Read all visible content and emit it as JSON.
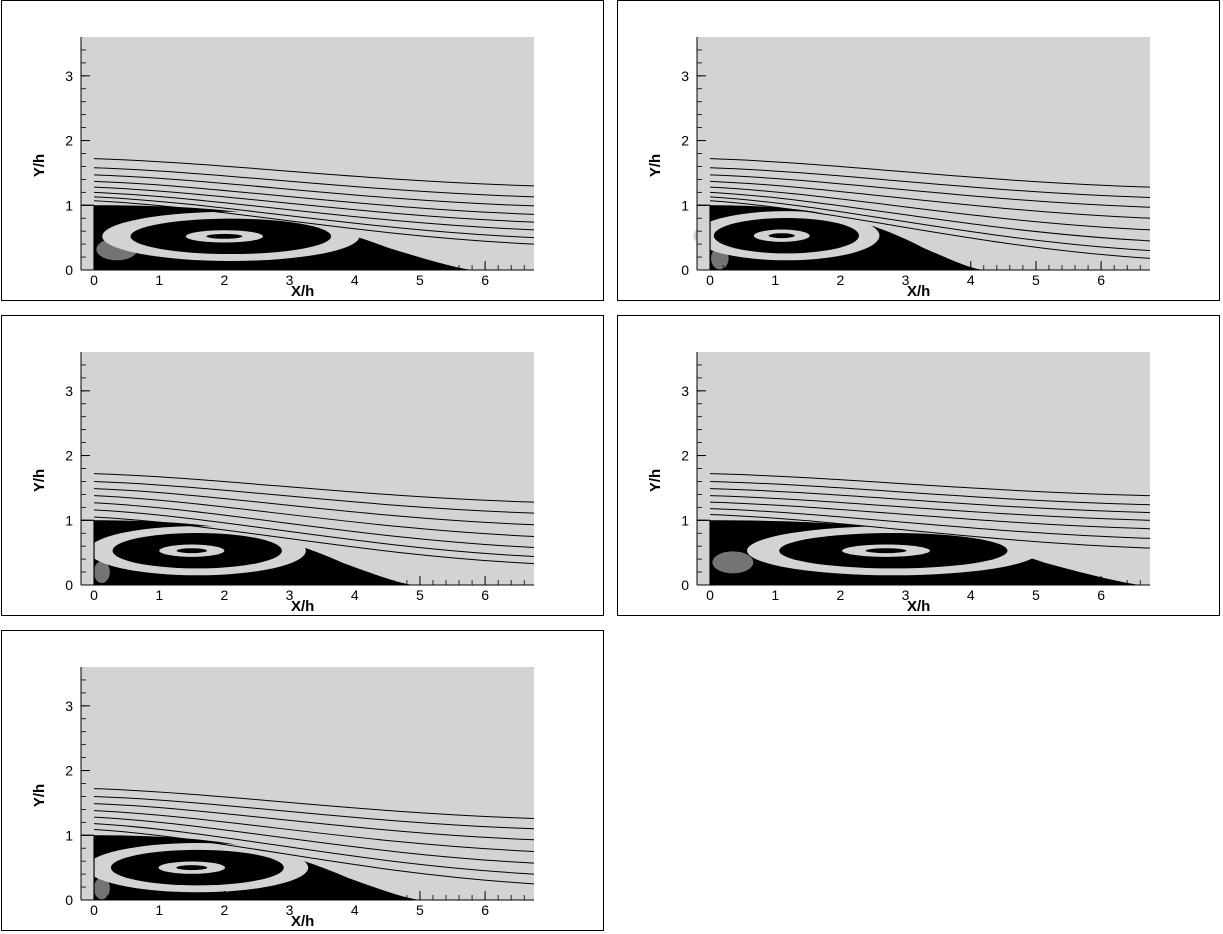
{
  "chart_data": [
    {
      "type": "streamline",
      "xlabel": "X/h",
      "ylabel": "Y/h",
      "xlim": [
        -0.2,
        6.75
      ],
      "ylim": [
        0,
        3.6
      ],
      "xticks": [
        0,
        1,
        2,
        3,
        4,
        5,
        6
      ],
      "yticks": [
        0,
        1,
        2,
        3
      ],
      "step_height": 1,
      "reattachment_x": 5.8,
      "primary_vortex_center": [
        2.0,
        0.52
      ],
      "secondary_vortex_center": [
        0.35,
        0.32
      ],
      "free_streamlines_y_inlet": [
        1.72,
        1.58,
        1.47,
        1.37,
        1.28,
        1.2,
        1.13,
        1.07
      ],
      "free_streamlines_y_outlet": [
        1.3,
        1.13,
        0.99,
        0.86,
        0.74,
        0.62,
        0.5,
        0.4
      ]
    },
    {
      "type": "streamline",
      "xlabel": "X/h",
      "ylabel": "Y/h",
      "xlim": [
        -0.2,
        6.75
      ],
      "ylim": [
        0,
        3.6
      ],
      "xticks": [
        0,
        1,
        2,
        3,
        4,
        5,
        6
      ],
      "yticks": [
        0,
        1,
        2,
        3
      ],
      "step_height": 1,
      "reattachment_x": 4.2,
      "primary_vortex_center": [
        1.1,
        0.53
      ],
      "secondary_vortex_center": [
        0.15,
        0.18
      ],
      "free_streamlines_y_inlet": [
        1.72,
        1.58,
        1.47,
        1.37,
        1.28,
        1.2,
        1.13,
        1.07
      ],
      "free_streamlines_y_outlet": [
        1.28,
        1.12,
        0.97,
        0.8,
        0.62,
        0.45,
        0.3,
        0.18
      ]
    },
    {
      "type": "streamline",
      "xlabel": "X/h",
      "ylabel": "Y/h",
      "xlim": [
        -0.2,
        6.75
      ],
      "ylim": [
        0,
        3.6
      ],
      "xticks": [
        0,
        1,
        2,
        3,
        4,
        5,
        6
      ],
      "yticks": [
        0,
        1,
        2,
        3
      ],
      "step_height": 1,
      "reattachment_x": 4.9,
      "primary_vortex_center": [
        1.5,
        0.53
      ],
      "secondary_vortex_center": [
        0.12,
        0.2
      ],
      "free_streamlines_y_inlet": [
        1.72,
        1.6,
        1.49,
        1.38,
        1.27,
        1.16,
        1.05
      ],
      "free_streamlines_y_outlet": [
        1.28,
        1.11,
        0.93,
        0.75,
        0.58,
        0.44,
        0.33
      ]
    },
    {
      "type": "streamline",
      "xlabel": "X/h",
      "ylabel": "Y/h",
      "xlim": [
        -0.2,
        6.75
      ],
      "ylim": [
        0,
        3.6
      ],
      "xticks": [
        0,
        1,
        2,
        3,
        4,
        5,
        6
      ],
      "yticks": [
        0,
        1,
        2,
        3
      ],
      "step_height": 1,
      "reattachment_x": 6.6,
      "primary_vortex_center": [
        2.7,
        0.53
      ],
      "secondary_vortex_center": [
        0.35,
        0.35
      ],
      "free_streamlines_y_inlet": [
        1.72,
        1.6,
        1.49,
        1.38,
        1.28,
        1.18,
        1.09
      ],
      "free_streamlines_y_outlet": [
        1.38,
        1.24,
        1.12,
        1.0,
        0.87,
        0.72,
        0.57
      ]
    },
    {
      "type": "streamline",
      "xlabel": "X/h",
      "ylabel": "Y/h",
      "xlim": [
        -0.2,
        6.75
      ],
      "ylim": [
        0,
        3.6
      ],
      "xticks": [
        0,
        1,
        2,
        3,
        4,
        5,
        6
      ],
      "yticks": [
        0,
        1,
        2,
        3
      ],
      "step_height": 1,
      "reattachment_x": 5.0,
      "primary_vortex_center": [
        1.5,
        0.5
      ],
      "secondary_vortex_center": [
        0.12,
        0.18
      ],
      "free_streamlines_y_inlet": [
        1.72,
        1.6,
        1.49,
        1.38,
        1.28,
        1.18,
        1.09
      ],
      "free_streamlines_y_outlet": [
        1.26,
        1.1,
        0.93,
        0.75,
        0.57,
        0.4,
        0.25
      ]
    }
  ]
}
